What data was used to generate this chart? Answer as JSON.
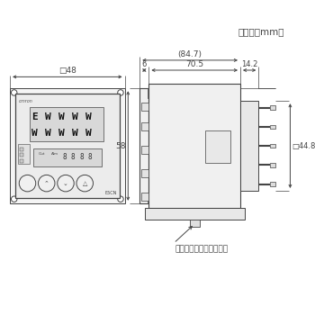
{
  "title_unit": "（単位：mm）",
  "dim_48": "□48",
  "dim_58": "58",
  "dim_6": "6",
  "dim_705": "70.5",
  "dim_847": "(84.7)",
  "dim_142": "14.2",
  "dim_448": "□44.8",
  "label_adapter": "取付用アダプタ（付属）",
  "bg_color": "#ffffff",
  "line_color": "#444444",
  "font_size_dim": 6.5
}
